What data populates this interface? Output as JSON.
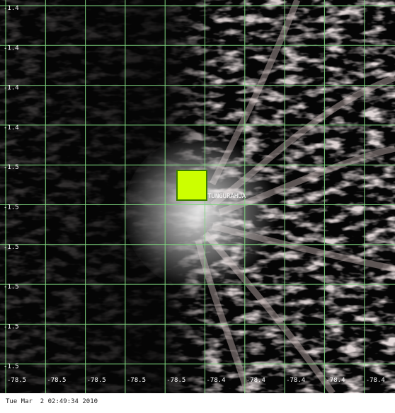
{
  "map": {
    "lat_labels": [
      "-1.4",
      "-1.4",
      "-1.4",
      "-1.4",
      "-1.5",
      "-1.5",
      "-1.5",
      "-1.5",
      "-1.5",
      "-1.5"
    ],
    "lon_labels": [
      "-78.5",
      "-78.5",
      "-78.5",
      "-78.5",
      "-78.5",
      "-78.4",
      "-78.4",
      "-78.4",
      "-78.4",
      "-78.4"
    ],
    "marker": {
      "label": "TUNGURAHUA"
    },
    "timestamp": "Tue Mar  2 02:49:34 2010"
  }
}
